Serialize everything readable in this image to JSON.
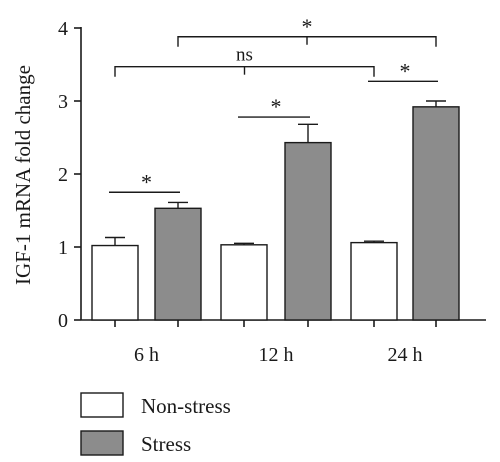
{
  "chart_data": {
    "type": "bar",
    "ylabel": "IGF-1 mRNA fold change",
    "ylim": [
      0,
      4
    ],
    "yticks": [
      "0",
      "1",
      "2",
      "3",
      "4"
    ],
    "categories": [
      "6 h",
      "12 h",
      "24 h"
    ],
    "series": [
      {
        "name": "Non-stress",
        "color": "#ffffff",
        "values": [
          1.02,
          1.03,
          1.06
        ],
        "errors": [
          0.11,
          0.02,
          0.02
        ]
      },
      {
        "name": "Stress",
        "color": "#8c8c8c",
        "values": [
          1.53,
          2.43,
          2.92
        ],
        "errors": [
          0.08,
          0.25,
          0.08
        ]
      }
    ],
    "annotations": [
      {
        "type": "bracket",
        "label": "*",
        "from": [
          0,
          0
        ],
        "to": [
          0,
          1
        ],
        "y": 1.75
      },
      {
        "type": "bracket",
        "label": "*",
        "from": [
          1,
          0
        ],
        "to": [
          1,
          1
        ],
        "y": 2.78
      },
      {
        "type": "bracket",
        "label": "*",
        "from": [
          2,
          0
        ],
        "to": [
          2,
          1
        ],
        "y": 3.27
      },
      {
        "type": "bracket",
        "label": "ns",
        "from": [
          0,
          0
        ],
        "to": [
          2,
          0
        ],
        "y": 3.47
      },
      {
        "type": "bracket",
        "label": "*",
        "from": [
          0,
          1
        ],
        "to": [
          2,
          1
        ],
        "y": 3.88
      }
    ],
    "legend": "bottom-left"
  }
}
